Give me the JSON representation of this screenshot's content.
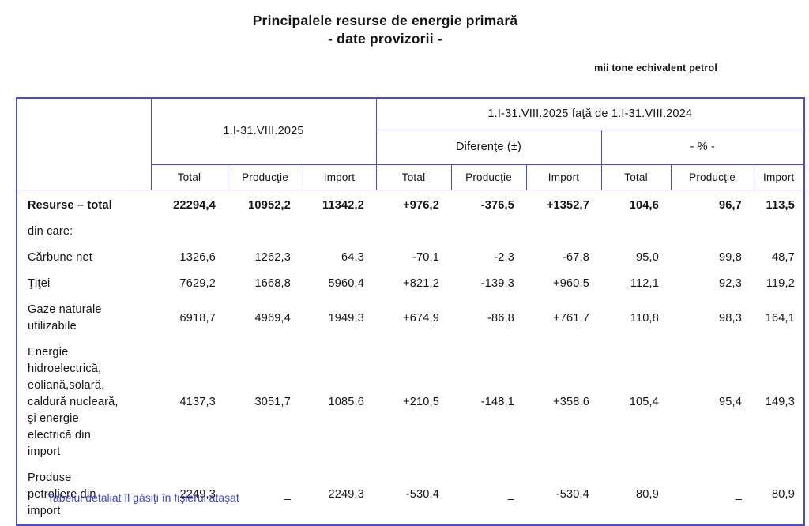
{
  "title": {
    "line1": "Principalele resurse de energie primară",
    "line2": "- date provizorii -",
    "unit": "mii tone echivalent petrol"
  },
  "table": {
    "period_header": "1.I-31.VIII.2025",
    "comparison_header": "1.I-31.VIII.2025 faţă de 1.I-31.VIII.2024",
    "diff_group_header": "Diferenţe (±)",
    "pct_group_header": "- % -",
    "columns": [
      "Total",
      "Producţie",
      "Import",
      "Total",
      "Producţie",
      "Import",
      "Total",
      "Producţie",
      "Import"
    ],
    "rows": [
      {
        "label": "Resurse – total",
        "bold": true,
        "values": [
          "22294,4",
          "10952,2",
          "11342,2",
          "+976,2",
          "-376,5",
          "+1352,7",
          "104,6",
          "96,7",
          "113,5"
        ]
      },
      {
        "label": "din care:",
        "bold": false,
        "values": [
          "",
          "",
          "",
          "",
          "",
          "",
          "",
          "",
          ""
        ]
      },
      {
        "label": "Cărbune net",
        "bold": false,
        "values": [
          "1326,6",
          "1262,3",
          "64,3",
          "-70,1",
          "-2,3",
          "-67,8",
          "95,0",
          "99,8",
          "48,7"
        ]
      },
      {
        "label": "Ţiţei",
        "bold": false,
        "values": [
          "7629,2",
          "1668,8",
          "5960,4",
          "+821,2",
          "-139,3",
          "+960,5",
          "112,1",
          "92,3",
          "119,2"
        ]
      },
      {
        "label": "Gaze naturale utilizabile",
        "bold": false,
        "values": [
          "6918,7",
          "4969,4",
          "1949,3",
          "+674,9",
          "-86,8",
          "+761,7",
          "110,8",
          "98,3",
          "164,1"
        ]
      },
      {
        "label": "Energie hidroelectrică, eoliană,solară, caldură nucleară, şi energie electrică din import",
        "bold": false,
        "values": [
          "4137,3",
          "3051,7",
          "1085,6",
          "+210,5",
          "-148,1",
          "+358,6",
          "105,4",
          "95,4",
          "149,3"
        ]
      },
      {
        "label": "Produse petroliere din import",
        "bold": false,
        "values": [
          "2249,3",
          "_",
          "2249,3",
          "-530,4",
          "_",
          "-530,4",
          "80,9",
          "_",
          "80,9"
        ]
      }
    ],
    "border_color": "#4d4dcc"
  },
  "footnote": "Tabelul detaliat îl găsiţi în fişierul ataşat"
}
